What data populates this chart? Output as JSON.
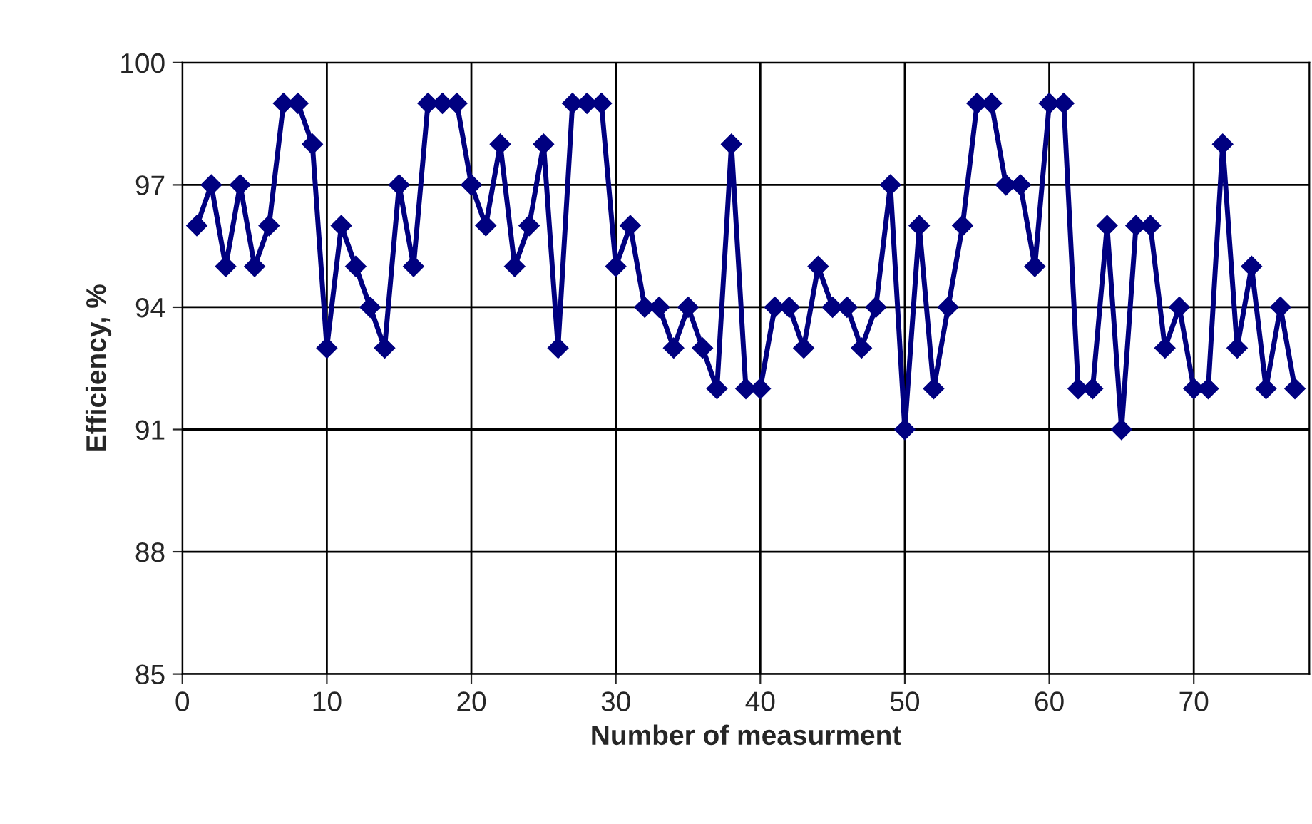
{
  "chart_data": {
    "type": "line",
    "xlabel": "Number of measurment",
    "ylabel": "Efficiency, %",
    "x": [
      1,
      2,
      3,
      4,
      5,
      6,
      7,
      8,
      9,
      10,
      11,
      12,
      13,
      14,
      15,
      16,
      17,
      18,
      19,
      20,
      21,
      22,
      23,
      24,
      25,
      26,
      27,
      28,
      29,
      30,
      31,
      32,
      33,
      34,
      35,
      36,
      37,
      38,
      39,
      40,
      41,
      42,
      43,
      44,
      45,
      46,
      47,
      48,
      49,
      50,
      51,
      52,
      53,
      54,
      55,
      56,
      57,
      58,
      59,
      60,
      61,
      62,
      63,
      64,
      65,
      66,
      67,
      68,
      69,
      70,
      71,
      72,
      73,
      74,
      75,
      76,
      77
    ],
    "series": [
      {
        "color": "#000080",
        "values": [
          96,
          97,
          95,
          97,
          95,
          96,
          99,
          99,
          98,
          93,
          96,
          95,
          94,
          93,
          97,
          95,
          99,
          99,
          99,
          97,
          96,
          98,
          95,
          96,
          98,
          93,
          99,
          99,
          99,
          95,
          96,
          94,
          94,
          93,
          94,
          93,
          92,
          98,
          92,
          92,
          94,
          94,
          93,
          95,
          94,
          94,
          93,
          94,
          97,
          91,
          96,
          92,
          94,
          96,
          99,
          99,
          97,
          97,
          95,
          99,
          99,
          92,
          92,
          96,
          91,
          96,
          96,
          93,
          94,
          92,
          92,
          98,
          93,
          95,
          92,
          94,
          92
        ]
      }
    ],
    "xlim": [
      0,
      78
    ],
    "xticks": [
      0,
      10,
      20,
      30,
      40,
      50,
      60,
      70
    ],
    "ylim": [
      85,
      100
    ],
    "yticks": [
      85,
      88,
      91,
      94,
      97,
      100
    ],
    "grid": true,
    "legend": false,
    "marker": "diamond",
    "line_style": "solid"
  }
}
